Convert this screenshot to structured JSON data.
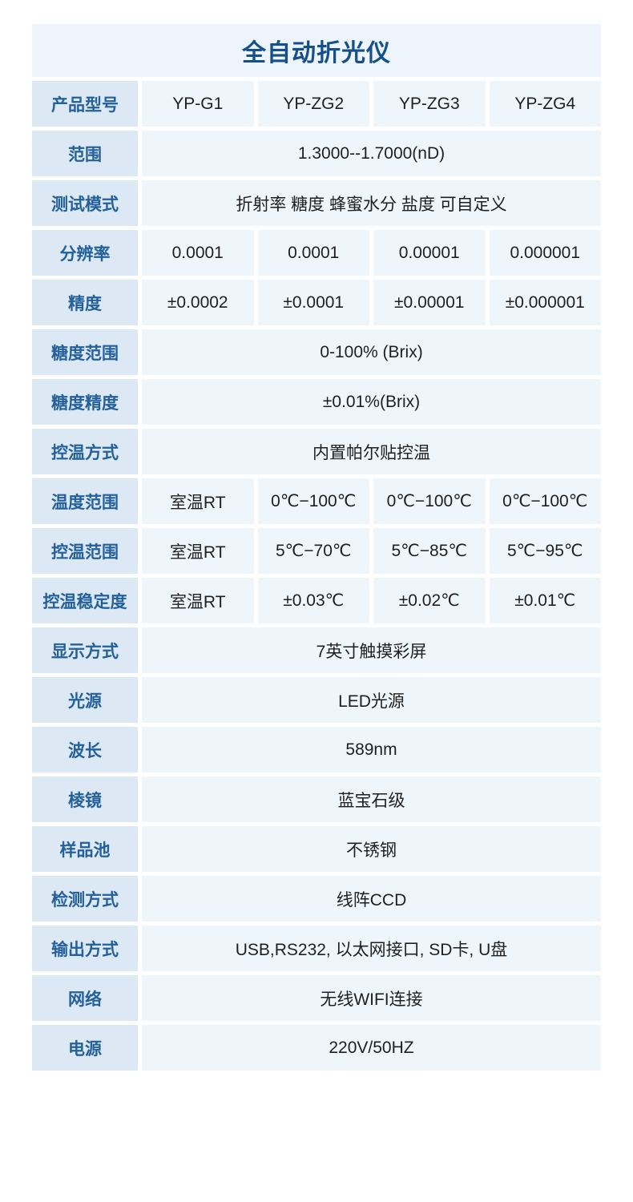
{
  "title": "全自动折光仪",
  "colors": {
    "page_bg": "#ffffff",
    "title_bg": "#edf4fb",
    "title_text": "#15508a",
    "label_cell_bg": "#dce9f5",
    "label_text": "#24609a",
    "value_cell_bg": "#eef5fb",
    "value_text": "#1f1f1f"
  },
  "rows": [
    {
      "label": "产品型号",
      "cells": [
        "YP-G1",
        "YP-ZG2",
        "YP-ZG3",
        "YP-ZG4"
      ]
    },
    {
      "label": "范围",
      "span": "1.3000--1.7000(nD)"
    },
    {
      "label": "测试模式",
      "span": "折射率 糖度 蜂蜜水分 盐度 可自定义"
    },
    {
      "label": "分辨率",
      "cells": [
        "0.0001",
        "0.0001",
        "0.00001",
        "0.000001"
      ]
    },
    {
      "label": "精度",
      "cells": [
        "±0.0002",
        "±0.0001",
        "±0.00001",
        "±0.000001"
      ]
    },
    {
      "label": "糖度范围",
      "span": "0-100% (Brix)"
    },
    {
      "label": "糖度精度",
      "span": "±0.01%(Brix)"
    },
    {
      "label": "控温方式",
      "span": "内置帕尔贴控温"
    },
    {
      "label": "温度范围",
      "cells": [
        "室温RT",
        "0℃−100℃",
        "0℃−100℃",
        "0℃−100℃"
      ]
    },
    {
      "label": "控温范围",
      "cells": [
        "室温RT",
        "5℃−70℃",
        "5℃−85℃",
        "5℃−95℃"
      ]
    },
    {
      "label": "控温稳定度",
      "cells": [
        "室温RT",
        "±0.03℃",
        "±0.02℃",
        "±0.01℃"
      ]
    },
    {
      "label": "显示方式",
      "span": "7英寸触摸彩屏"
    },
    {
      "label": "光源",
      "span": "LED光源"
    },
    {
      "label": "波长",
      "span": "589nm"
    },
    {
      "label": "棱镜",
      "span": "蓝宝石级"
    },
    {
      "label": "样品池",
      "span": "不锈钢"
    },
    {
      "label": "检测方式",
      "span": "线阵CCD"
    },
    {
      "label": "输出方式",
      "span": "USB,RS232, 以太网接口, SD卡, U盘"
    },
    {
      "label": "网络",
      "span": "无线WIFI连接"
    },
    {
      "label": "电源",
      "span": "220V/50HZ"
    }
  ]
}
